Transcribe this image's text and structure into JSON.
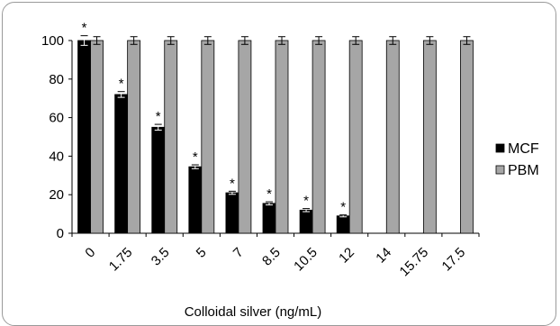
{
  "chart_data": {
    "type": "bar",
    "title": "",
    "xlabel": "Colloidal silver (ng/mL)",
    "ylabel": "",
    "ylim": [
      0,
      100
    ],
    "yticks": [
      0,
      20,
      40,
      60,
      80,
      100
    ],
    "categories": [
      "0",
      "1.75",
      "3.5",
      "5",
      "7",
      "8.5",
      "10.5",
      "12",
      "14",
      "15.75",
      "17.5"
    ],
    "series": [
      {
        "name": "MCF",
        "color": "#000000",
        "values": [
          100,
          72,
          55,
          34.5,
          21,
          15.5,
          12,
          9,
          null,
          null,
          null
        ],
        "errors": [
          2.5,
          1.5,
          1.5,
          1,
          0.8,
          0.8,
          0.8,
          0.5,
          null,
          null,
          null
        ],
        "significant": [
          true,
          true,
          true,
          true,
          true,
          true,
          true,
          true,
          false,
          false,
          false
        ]
      },
      {
        "name": "PBM",
        "color": "#a6a6a6",
        "values": [
          100,
          100,
          100,
          100,
          100,
          100,
          100,
          100,
          100,
          100,
          100
        ],
        "errors": [
          2,
          2,
          2,
          2,
          2,
          2,
          2,
          2,
          2,
          2,
          2
        ],
        "significant": [
          false,
          false,
          false,
          false,
          false,
          false,
          false,
          false,
          false,
          false,
          false
        ]
      }
    ],
    "significance_marker": "*",
    "legend_position": "right",
    "grid": false
  }
}
